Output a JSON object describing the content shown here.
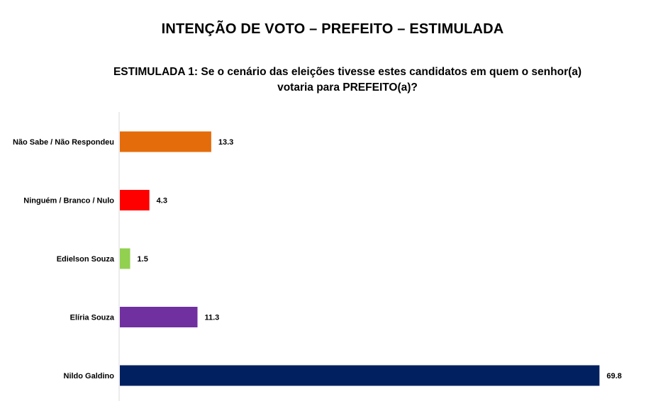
{
  "header": {
    "title": "INTENÇÃO DE VOTO – PREFEITO – ESTIMULADA",
    "subtitle_line1": "ESTIMULADA 1: Se o cenário das eleições tivesse estes candidatos em quem o senhor(a)",
    "subtitle_line2": "votaria para PREFEITO(a)?"
  },
  "chart_data": {
    "type": "bar",
    "orientation": "horizontal",
    "title": "ESTIMULADA 1: Se o cenário das eleições tivesse estes candidatos em quem o senhor(a) votaria para PREFEITO(a)?",
    "xlabel": "",
    "ylabel": "",
    "xlim": [
      0,
      70
    ],
    "grid": false,
    "categories": [
      "Não Sabe / Não Respondeu",
      "Ninguém / Branco / Nulo",
      "Edielson Souza",
      "Elíria Souza",
      "Nildo Galdino"
    ],
    "values": [
      13.3,
      4.3,
      1.5,
      11.3,
      69.8
    ],
    "value_labels": [
      "13.3",
      "4.3",
      "1.5",
      "11.3",
      "69.8"
    ],
    "colors": [
      "#E46C0A",
      "#FF0000",
      "#92D050",
      "#7030A0",
      "#002060"
    ]
  }
}
